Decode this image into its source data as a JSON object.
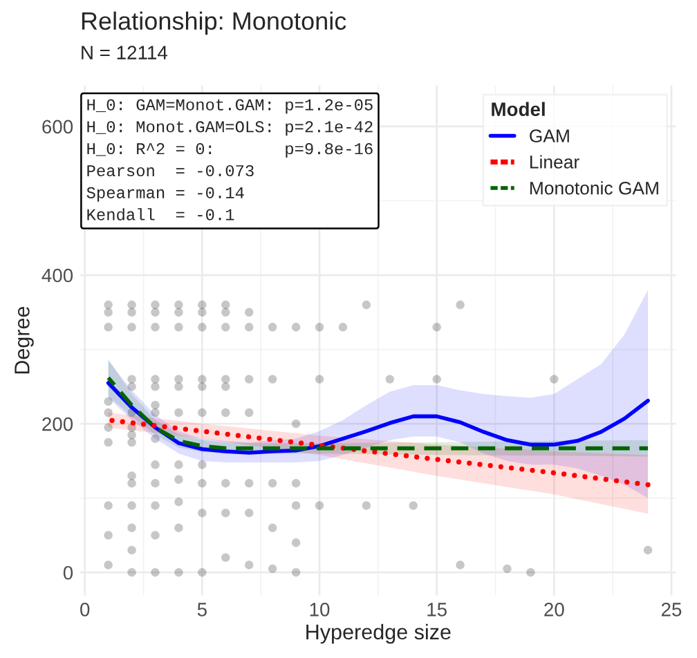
{
  "chart_data": {
    "type": "line",
    "title": "Relationship: Monotonic",
    "subtitle": "N = 12114",
    "xlabel": "Hyperedge size",
    "ylabel": "Degree",
    "legend_title": "Model",
    "legend": "top right",
    "grid": true,
    "xlim": [
      -0.2,
      25.2
    ],
    "ylim": [
      -31,
      655
    ],
    "xticks": [
      0,
      5,
      10,
      15,
      20,
      25
    ],
    "yticks": [
      0,
      200,
      400,
      600
    ],
    "annotations": [
      "H_0: GAM=Monot.GAM: p=1.2e-05",
      "H_0: Monot.GAM=OLS: p=2.1e-42",
      "H_0: R^2 = 0:       p=9.8e-16",
      "Pearson  = -0.073",
      "Spearman = -0.14",
      "Kendall  = -0.1"
    ],
    "series": [
      {
        "type": "scatter",
        "color": "#000000",
        "x": [
          1,
          1,
          1,
          1,
          1,
          1,
          1,
          1,
          1,
          1,
          2,
          2,
          2,
          2,
          2,
          2,
          2,
          2,
          2,
          2,
          2,
          2,
          2,
          2,
          2,
          3,
          3,
          3,
          3,
          3,
          3,
          3,
          3,
          3,
          3,
          3,
          3,
          3,
          4,
          4,
          4,
          4,
          4,
          4,
          4,
          4,
          4,
          4,
          4,
          5,
          5,
          5,
          5,
          5,
          5,
          5,
          5,
          5,
          5,
          6,
          6,
          6,
          6,
          6,
          6,
          6,
          6,
          6,
          7,
          7,
          7,
          7,
          7,
          7,
          7,
          8,
          8,
          8,
          8,
          8,
          9,
          9,
          9,
          9,
          9,
          9,
          10,
          10,
          10,
          11,
          12,
          12,
          13,
          14,
          15,
          15,
          16,
          16,
          18,
          19,
          20,
          24
        ],
        "values": [
          330,
          350,
          360,
          175,
          195,
          215,
          230,
          90,
          50,
          10,
          330,
          350,
          360,
          260,
          250,
          215,
          195,
          185,
          175,
          130,
          120,
          90,
          60,
          30,
          0,
          330,
          350,
          360,
          260,
          250,
          225,
          215,
          180,
          145,
          120,
          90,
          50,
          0,
          330,
          350,
          360,
          260,
          250,
          215,
          145,
          125,
          95,
          60,
          0,
          330,
          350,
          360,
          260,
          250,
          215,
          145,
          120,
          80,
          0,
          330,
          350,
          360,
          260,
          250,
          215,
          120,
          80,
          20,
          350,
          330,
          260,
          215,
          120,
          80,
          10,
          330,
          260,
          120,
          60,
          5,
          330,
          200,
          120,
          90,
          40,
          0,
          330,
          260,
          90,
          330,
          360,
          90,
          260,
          90,
          330,
          260,
          360,
          10,
          5,
          0,
          260,
          30
        ]
      },
      {
        "name": "GAM",
        "color": "#0000ff",
        "line_style": "solid",
        "x": [
          1,
          2,
          3,
          4,
          5,
          6,
          7,
          8,
          9,
          10,
          11,
          12,
          13,
          14,
          15,
          16,
          17,
          18,
          19,
          20,
          21,
          22,
          23,
          24
        ],
        "values": [
          255,
          222,
          195,
          174,
          166,
          163,
          161,
          163,
          164,
          170,
          180,
          190,
          201,
          210,
          210,
          202,
          189,
          178,
          172,
          172,
          177,
          189,
          207,
          231
        ],
        "lower": [
          235,
          205,
          180,
          160,
          150,
          148,
          148,
          148,
          148,
          150,
          158,
          168,
          178,
          183,
          183,
          175,
          160,
          150,
          145,
          145,
          140,
          130,
          118,
          100
        ],
        "upper": [
          285,
          245,
          212,
          190,
          180,
          177,
          175,
          178,
          180,
          190,
          205,
          225,
          243,
          252,
          252,
          245,
          240,
          237,
          235,
          240,
          260,
          280,
          320,
          380
        ]
      },
      {
        "name": "Linear",
        "color": "#ff0000",
        "line_style": "dotted",
        "x": [
          1,
          5,
          10,
          15,
          20,
          24
        ],
        "values": [
          205,
          190,
          171,
          152,
          134,
          118
        ],
        "lower": [
          195,
          180,
          158,
          130,
          105,
          79
        ],
        "upper": [
          215,
          200,
          184,
          172,
          163,
          158
        ]
      },
      {
        "name": "Monotonic GAM",
        "color": "#006400",
        "line_style": "dashed",
        "x": [
          1,
          2,
          3,
          4,
          5,
          6,
          7,
          8,
          10,
          15,
          20,
          24
        ],
        "values": [
          262,
          225,
          195,
          177,
          170,
          167,
          167,
          167,
          167,
          167,
          167,
          167
        ],
        "lower": [
          237,
          210,
          185,
          168,
          162,
          160,
          160,
          160,
          160,
          158,
          157,
          156
        ],
        "upper": [
          287,
          240,
          205,
          186,
          178,
          175,
          174,
          174,
          174,
          175,
          177,
          178
        ]
      }
    ]
  }
}
